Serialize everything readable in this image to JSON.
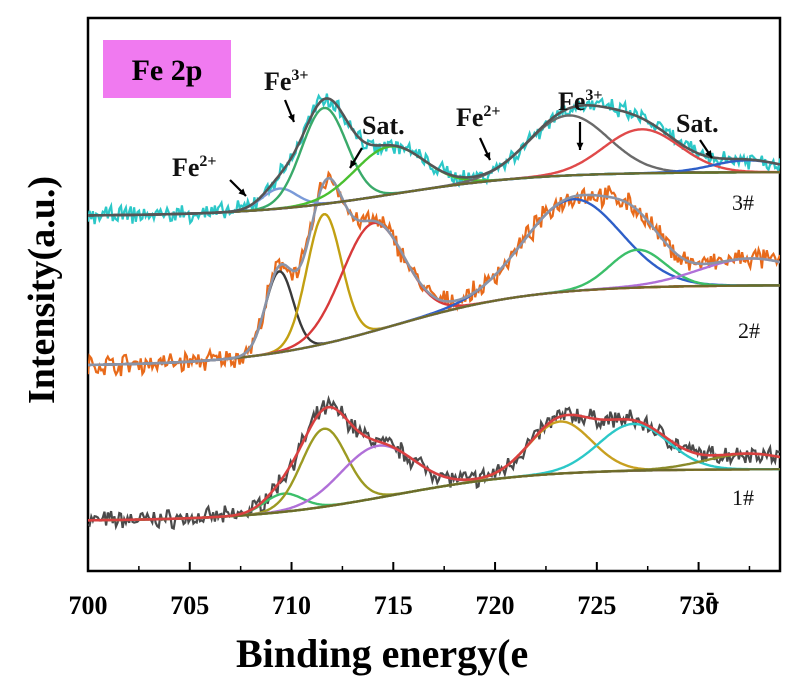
{
  "chart_data": {
    "type": "line",
    "title": "Fe 2p",
    "xlabel": "Binding energy(eV)",
    "xlabel_visible": "Binding energy(e",
    "ylabel": "Intensity(a.u.)",
    "xlim": [
      700,
      734
    ],
    "x_ticks": [
      700,
      705,
      710,
      715,
      720,
      725,
      730
    ],
    "y_ticks_visible": false,
    "spectra": [
      {
        "label": "1#",
        "raw_color": "#4a4a4a",
        "envelope_color": "#d94040",
        "envelope_width": 2.6,
        "baseline": {
          "start": 0.0,
          "end": 0.2,
          "mid": 715,
          "width": 3.5
        },
        "components": [
          {
            "name": "Fe2+",
            "center": 709.6,
            "fwhm": 2.2,
            "height": 0.07,
            "color": "#3cbf6a"
          },
          {
            "name": "Fe3+",
            "center": 711.6,
            "fwhm": 2.6,
            "height": 0.3,
            "color": "#9c9a22"
          },
          {
            "name": "Sat.",
            "center": 714.2,
            "fwhm": 4.2,
            "height": 0.2,
            "color": "#b070d8"
          },
          {
            "name": "Fe2+",
            "center": 723.2,
            "fwhm": 3.6,
            "height": 0.2,
            "color": "#c8a020"
          },
          {
            "name": "Fe3+",
            "center": 726.8,
            "fwhm": 4.0,
            "height": 0.18,
            "color": "#2cc8c8"
          },
          {
            "name": "Sat.",
            "center": 732.5,
            "fwhm": 5.0,
            "height": 0.06,
            "color": "#8a8a2a"
          }
        ],
        "noise": 0.028
      },
      {
        "label": "2#",
        "raw_color": "#e86a1a",
        "envelope_color": "#8a94a8",
        "envelope_width": 2.6,
        "baseline": {
          "start": 0.0,
          "end": 0.3,
          "mid": 715,
          "width": 3.5
        },
        "components": [
          {
            "name": "Fe2+",
            "center": 709.4,
            "fwhm": 1.6,
            "height": 0.3,
            "color": "#3a3a3a"
          },
          {
            "name": "Fe3+",
            "center": 711.6,
            "fwhm": 2.0,
            "height": 0.48,
            "color": "#c2a012"
          },
          {
            "name": "Sat.",
            "center": 714.0,
            "fwhm": 3.6,
            "height": 0.4,
            "color": "#d83a3a"
          },
          {
            "name": "Fe2+",
            "center": 723.8,
            "fwhm": 5.6,
            "height": 0.34,
            "color": "#2e5fc8"
          },
          {
            "name": "Fe3+",
            "center": 727.0,
            "fwhm": 3.2,
            "height": 0.14,
            "color": "#3cbf6a"
          },
          {
            "name": "Sat.",
            "center": 732.6,
            "fwhm": 6.0,
            "height": 0.1,
            "color": "#b070d8"
          }
        ],
        "noise": 0.03
      },
      {
        "label": "3#",
        "raw_color": "#2cc8c8",
        "envelope_color": "#555555",
        "envelope_width": 2.6,
        "baseline": {
          "start": 0.0,
          "end": 0.22,
          "mid": 715,
          "width": 3.5
        },
        "components": [
          {
            "name": "Fe2+",
            "center": 709.4,
            "fwhm": 2.0,
            "height": 0.1,
            "color": "#7a9ad8"
          },
          {
            "name": "Fe3+",
            "center": 711.6,
            "fwhm": 2.6,
            "height": 0.48,
            "color": "#3aaa6a"
          },
          {
            "name": "Sat.",
            "center": 714.8,
            "fwhm": 4.0,
            "height": 0.24,
            "color": "#4ac030"
          },
          {
            "name": "Fe2+",
            "center": 723.6,
            "fwhm": 4.6,
            "height": 0.3,
            "color": "#6a6a6a"
          },
          {
            "name": "Fe3+",
            "center": 727.2,
            "fwhm": 4.4,
            "height": 0.22,
            "color": "#e04a4a"
          },
          {
            "name": "Sat.",
            "center": 732.4,
            "fwhm": 4.0,
            "height": 0.06,
            "color": "#2e5fc8"
          }
        ],
        "noise": 0.035
      }
    ],
    "annotations": [
      {
        "text": "Fe",
        "sup": "2+",
        "spectrum": "3#",
        "target_x": 709.4
      },
      {
        "text": "Fe",
        "sup": "3+",
        "spectrum": "3#",
        "target_x": 711.6
      },
      {
        "text": "Sat.",
        "spectrum": "3#",
        "target_x": 715.0
      },
      {
        "text": "Fe",
        "sup": "2+",
        "spectrum": "3#",
        "target_x": 723.4
      },
      {
        "text": "Fe",
        "sup": "3+",
        "spectrum": "3#",
        "target_x": 727.6
      },
      {
        "text": "Sat.",
        "spectrum": "3#",
        "target_x": 733.0
      }
    ],
    "badge": {
      "text": "Fe 2p",
      "color": "#f07af0"
    },
    "corner_text": "-̱"
  }
}
